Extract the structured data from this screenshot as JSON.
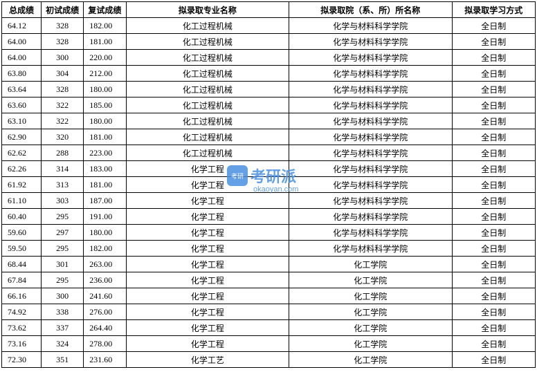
{
  "columns": [
    {
      "key": "total_score",
      "label": "总成绩",
      "class": "col-total"
    },
    {
      "key": "first_exam",
      "label": "初试成绩",
      "class": "col-first"
    },
    {
      "key": "retest_score",
      "label": "复试成绩",
      "class": "col-retest"
    },
    {
      "key": "major",
      "label": "拟录取专业名称",
      "class": "col-major"
    },
    {
      "key": "department",
      "label": "拟录取院（系、所）所名称",
      "class": "col-dept"
    },
    {
      "key": "study_mode",
      "label": "拟录取学习方式",
      "class": "col-mode"
    }
  ],
  "rows": [
    {
      "total_score": "64.12",
      "first_exam": "328",
      "retest_score": "182.00",
      "major": "化工过程机械",
      "department": "化学与材料科学学院",
      "study_mode": "全日制"
    },
    {
      "total_score": "64.00",
      "first_exam": "328",
      "retest_score": "181.00",
      "major": "化工过程机械",
      "department": "化学与材料科学学院",
      "study_mode": "全日制"
    },
    {
      "total_score": "64.00",
      "first_exam": "300",
      "retest_score": "220.00",
      "major": "化工过程机械",
      "department": "化学与材料科学学院",
      "study_mode": "全日制"
    },
    {
      "total_score": "63.80",
      "first_exam": "304",
      "retest_score": "212.00",
      "major": "化工过程机械",
      "department": "化学与材料科学学院",
      "study_mode": "全日制"
    },
    {
      "total_score": "63.64",
      "first_exam": "328",
      "retest_score": "180.00",
      "major": "化工过程机械",
      "department": "化学与材料科学学院",
      "study_mode": "全日制"
    },
    {
      "total_score": "63.60",
      "first_exam": "322",
      "retest_score": "185.00",
      "major": "化工过程机械",
      "department": "化学与材料科学学院",
      "study_mode": "全日制"
    },
    {
      "total_score": "63.10",
      "first_exam": "322",
      "retest_score": "180.00",
      "major": "化工过程机械",
      "department": "化学与材料科学学院",
      "study_mode": "全日制"
    },
    {
      "total_score": "62.90",
      "first_exam": "320",
      "retest_score": "181.00",
      "major": "化工过程机械",
      "department": "化学与材料科学学院",
      "study_mode": "全日制"
    },
    {
      "total_score": "62.62",
      "first_exam": "288",
      "retest_score": "223.00",
      "major": "化工过程机械",
      "department": "化学与材料科学学院",
      "study_mode": "全日制"
    },
    {
      "total_score": "62.26",
      "first_exam": "314",
      "retest_score": "183.00",
      "major": "化学工程",
      "department": "化学与材料科学学院",
      "study_mode": "全日制"
    },
    {
      "total_score": "61.92",
      "first_exam": "313",
      "retest_score": "181.00",
      "major": "化学工程",
      "department": "化学与材料科学学院",
      "study_mode": "全日制"
    },
    {
      "total_score": "61.10",
      "first_exam": "303",
      "retest_score": "187.00",
      "major": "化学工程",
      "department": "化学与材料科学学院",
      "study_mode": "全日制"
    },
    {
      "total_score": "60.40",
      "first_exam": "295",
      "retest_score": "191.00",
      "major": "化学工程",
      "department": "化学与材料科学学院",
      "study_mode": "全日制"
    },
    {
      "total_score": "59.60",
      "first_exam": "297",
      "retest_score": "180.00",
      "major": "化学工程",
      "department": "化学与材料科学学院",
      "study_mode": "全日制"
    },
    {
      "total_score": "59.50",
      "first_exam": "295",
      "retest_score": "182.00",
      "major": "化学工程",
      "department": "化学与材料科学学院",
      "study_mode": "全日制"
    },
    {
      "total_score": "68.44",
      "first_exam": "301",
      "retest_score": "263.00",
      "major": "化学工程",
      "department": "化工学院",
      "study_mode": "全日制"
    },
    {
      "total_score": "67.84",
      "first_exam": "295",
      "retest_score": "236.00",
      "major": "化学工程",
      "department": "化工学院",
      "study_mode": "全日制"
    },
    {
      "total_score": "66.16",
      "first_exam": "300",
      "retest_score": "241.60",
      "major": "化学工程",
      "department": "化工学院",
      "study_mode": "全日制"
    },
    {
      "total_score": "74.92",
      "first_exam": "338",
      "retest_score": "276.00",
      "major": "化学工程",
      "department": "化工学院",
      "study_mode": "全日制"
    },
    {
      "total_score": "73.62",
      "first_exam": "337",
      "retest_score": "264.40",
      "major": "化学工程",
      "department": "化工学院",
      "study_mode": "全日制"
    },
    {
      "total_score": "73.16",
      "first_exam": "324",
      "retest_score": "278.00",
      "major": "化学工程",
      "department": "化工学院",
      "study_mode": "全日制"
    },
    {
      "total_score": "72.30",
      "first_exam": "351",
      "retest_score": "231.60",
      "major": "化学工艺",
      "department": "化工学院",
      "study_mode": "全日制"
    }
  ],
  "watermark": {
    "text": "考研派",
    "url": "okaoyan.com",
    "color": "#4a90e2",
    "icon_text": "考研"
  },
  "cell_alignment": {
    "total_score": "left",
    "first_exam": "center",
    "retest_score": "left",
    "major": "center",
    "department": "center",
    "study_mode": "center"
  }
}
